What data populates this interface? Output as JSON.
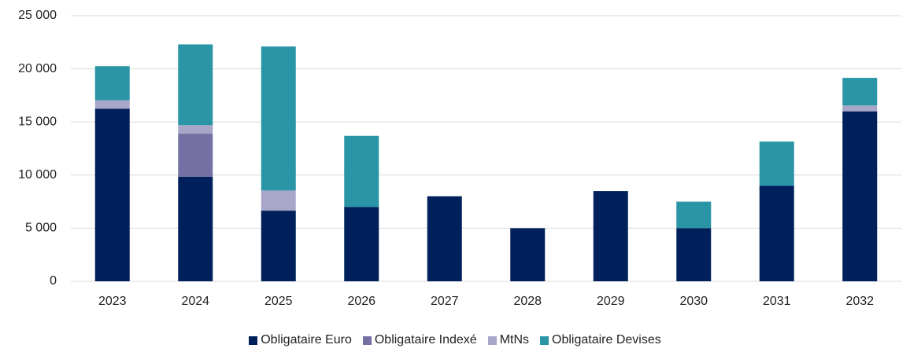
{
  "chart_data": {
    "type": "stacked_bar",
    "categories": [
      "2023",
      "2024",
      "2025",
      "2026",
      "2027",
      "2028",
      "2029",
      "2030",
      "2031",
      "2032"
    ],
    "series": [
      {
        "name": "Obligataire Euro",
        "color": "#00205b",
        "values": [
          16250,
          9850,
          6650,
          7000,
          8000,
          5000,
          8500,
          5000,
          9000,
          16000
        ]
      },
      {
        "name": "Obligataire Indexé",
        "color": "#7570a3",
        "values": [
          0,
          4050,
          0,
          0,
          0,
          0,
          0,
          0,
          0,
          0
        ]
      },
      {
        "name": "MtNs",
        "color": "#a9a7c9",
        "values": [
          800,
          800,
          1900,
          0,
          0,
          0,
          0,
          0,
          0,
          550
        ]
      },
      {
        "name": "Obligataire Devises",
        "color": "#2a95a6",
        "values": [
          3200,
          7600,
          13550,
          6700,
          0,
          0,
          0,
          2500,
          4150,
          2600
        ]
      }
    ],
    "ylim": [
      0,
      25000
    ],
    "yticks": [
      0,
      {
        "value": 5000,
        "label": "5 000"
      },
      {
        "value": 10000,
        "label": "10 000"
      },
      {
        "value": 15000,
        "label": "15 000"
      },
      {
        "value": 20000,
        "label": "20 000"
      },
      {
        "value": 25000,
        "label": "25 000"
      }
    ],
    "grid": true,
    "legend": "bottom"
  }
}
